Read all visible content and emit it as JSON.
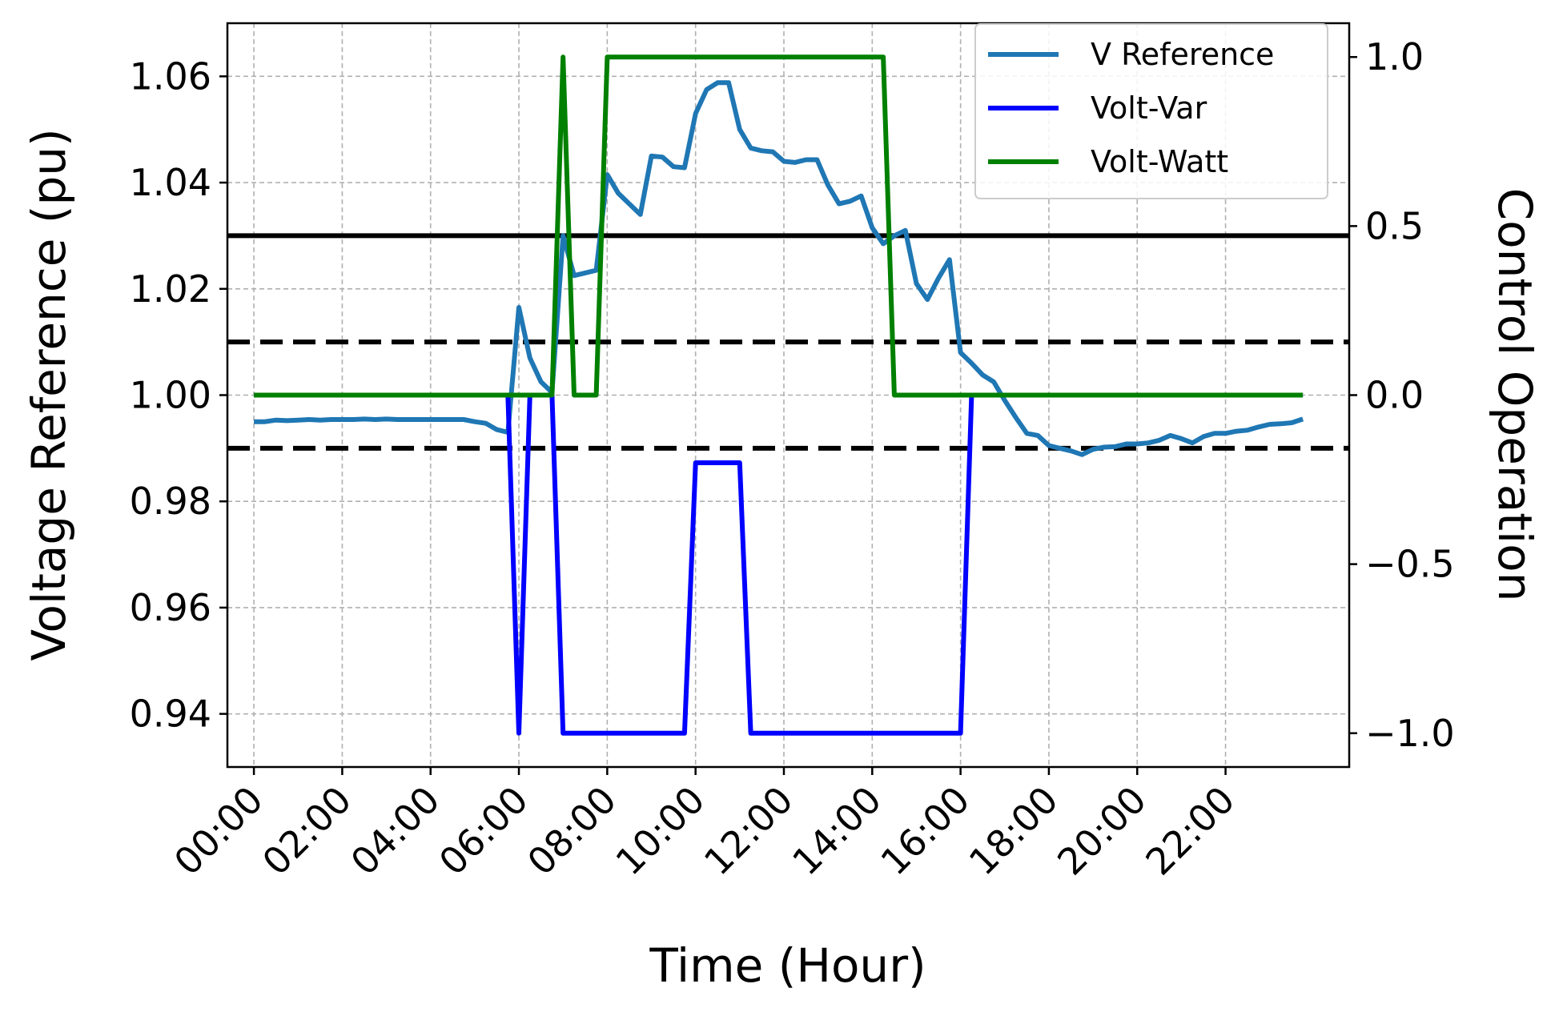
{
  "chart_data": {
    "type": "line",
    "xlabel": "Time (Hour)",
    "ylabel": "Voltage Reference (pu)",
    "y2label": "Control Operation",
    "xlim": [
      -0.6,
      24.8
    ],
    "ylim": [
      0.93,
      1.07
    ],
    "y2lim": [
      -1.1,
      1.1
    ],
    "x_ticks": [
      {
        "v": 0,
        "label": "00:00"
      },
      {
        "v": 2,
        "label": "02:00"
      },
      {
        "v": 4,
        "label": "04:00"
      },
      {
        "v": 6,
        "label": "06:00"
      },
      {
        "v": 8,
        "label": "08:00"
      },
      {
        "v": 10,
        "label": "10:00"
      },
      {
        "v": 12,
        "label": "12:00"
      },
      {
        "v": 14,
        "label": "14:00"
      },
      {
        "v": 16,
        "label": "16:00"
      },
      {
        "v": 18,
        "label": "18:00"
      },
      {
        "v": 20,
        "label": "20:00"
      },
      {
        "v": 22,
        "label": "22:00"
      }
    ],
    "y_ticks": [
      {
        "v": 0.94,
        "label": "0.94"
      },
      {
        "v": 0.96,
        "label": "0.96"
      },
      {
        "v": 0.98,
        "label": "0.98"
      },
      {
        "v": 1.0,
        "label": "1.00"
      },
      {
        "v": 1.02,
        "label": "1.02"
      },
      {
        "v": 1.04,
        "label": "1.04"
      },
      {
        "v": 1.06,
        "label": "1.06"
      }
    ],
    "y2_ticks": [
      {
        "v": -1.0,
        "label": "−1.0"
      },
      {
        "v": -0.5,
        "label": "−0.5"
      },
      {
        "v": 0.0,
        "label": "0.0"
      },
      {
        "v": 0.5,
        "label": "0.5"
      },
      {
        "v": 1.0,
        "label": "1.0"
      }
    ],
    "grid": true,
    "legend_position": "top-right",
    "reference_lines": [
      {
        "y": 1.03,
        "style": "solid",
        "color": "#000000"
      },
      {
        "y": 1.01,
        "style": "dashed",
        "color": "#000000"
      },
      {
        "y": 0.99,
        "style": "dashed",
        "color": "#000000"
      }
    ],
    "series": [
      {
        "name": "V Reference",
        "axis": "left",
        "color": "#1f77b4",
        "points": [
          [
            0.0,
            0.995
          ],
          [
            0.25,
            0.995
          ],
          [
            0.5,
            0.9953
          ],
          [
            0.75,
            0.9952
          ],
          [
            1.0,
            0.9953
          ],
          [
            1.25,
            0.9954
          ],
          [
            1.5,
            0.9953
          ],
          [
            1.75,
            0.9954
          ],
          [
            2.0,
            0.9954
          ],
          [
            2.25,
            0.9954
          ],
          [
            2.5,
            0.9955
          ],
          [
            2.75,
            0.9954
          ],
          [
            3.0,
            0.9955
          ],
          [
            3.25,
            0.9954
          ],
          [
            3.5,
            0.9954
          ],
          [
            3.75,
            0.9954
          ],
          [
            4.0,
            0.9954
          ],
          [
            4.25,
            0.9954
          ],
          [
            4.5,
            0.9954
          ],
          [
            4.75,
            0.9954
          ],
          [
            5.0,
            0.995
          ],
          [
            5.25,
            0.9947
          ],
          [
            5.5,
            0.9935
          ],
          [
            5.75,
            0.993
          ],
          [
            6.0,
            1.0165
          ],
          [
            6.25,
            1.007
          ],
          [
            6.5,
            1.0025
          ],
          [
            6.75,
            1.0005
          ],
          [
            7.0,
            1.03
          ],
          [
            7.25,
            1.0225
          ],
          [
            7.5,
            1.023
          ],
          [
            7.75,
            1.0235
          ],
          [
            8.0,
            1.0415
          ],
          [
            8.25,
            1.038
          ],
          [
            8.5,
            1.036
          ],
          [
            8.75,
            1.034
          ],
          [
            9.0,
            1.045
          ],
          [
            9.25,
            1.0448
          ],
          [
            9.5,
            1.043
          ],
          [
            9.75,
            1.0428
          ],
          [
            10.0,
            1.053
          ],
          [
            10.25,
            1.0575
          ],
          [
            10.5,
            1.0588
          ],
          [
            10.75,
            1.0588
          ],
          [
            11.0,
            1.05
          ],
          [
            11.25,
            1.0465
          ],
          [
            11.5,
            1.046
          ],
          [
            11.75,
            1.0458
          ],
          [
            12.0,
            1.044
          ],
          [
            12.25,
            1.0438
          ],
          [
            12.5,
            1.0443
          ],
          [
            12.75,
            1.0443
          ],
          [
            13.0,
            1.0395
          ],
          [
            13.25,
            1.036
          ],
          [
            13.5,
            1.0365
          ],
          [
            13.75,
            1.0375
          ],
          [
            14.0,
            1.0315
          ],
          [
            14.25,
            1.0285
          ],
          [
            14.5,
            1.03
          ],
          [
            14.75,
            1.031
          ],
          [
            15.0,
            1.021
          ],
          [
            15.25,
            1.018
          ],
          [
            15.5,
            1.022
          ],
          [
            15.75,
            1.0255
          ],
          [
            16.0,
            1.008
          ],
          [
            16.25,
            1.006
          ],
          [
            16.5,
            1.0038
          ],
          [
            16.75,
            1.0025
          ],
          [
            17.0,
            0.999
          ],
          [
            17.25,
            0.9958
          ],
          [
            17.5,
            0.9928
          ],
          [
            17.75,
            0.9924
          ],
          [
            18.0,
            0.9905
          ],
          [
            18.25,
            0.99
          ],
          [
            18.5,
            0.9895
          ],
          [
            18.75,
            0.9888
          ],
          [
            19.0,
            0.9898
          ],
          [
            19.25,
            0.9902
          ],
          [
            19.5,
            0.9903
          ],
          [
            19.75,
            0.9908
          ],
          [
            20.0,
            0.9908
          ],
          [
            20.25,
            0.991
          ],
          [
            20.5,
            0.9915
          ],
          [
            20.75,
            0.9924
          ],
          [
            21.0,
            0.9918
          ],
          [
            21.25,
            0.991
          ],
          [
            21.5,
            0.9922
          ],
          [
            21.75,
            0.9928
          ],
          [
            22.0,
            0.9928
          ],
          [
            22.25,
            0.9932
          ],
          [
            22.5,
            0.9934
          ],
          [
            22.75,
            0.994
          ],
          [
            23.0,
            0.9945
          ],
          [
            23.25,
            0.9946
          ],
          [
            23.5,
            0.9948
          ],
          [
            23.75,
            0.9955
          ]
        ]
      },
      {
        "name": "Volt-Var",
        "axis": "right",
        "color": "#0000ff",
        "points": [
          [
            0.0,
            0.0
          ],
          [
            5.75,
            0.0
          ],
          [
            6.0,
            -1.0
          ],
          [
            6.25,
            0.0
          ],
          [
            6.75,
            0.0
          ],
          [
            7.0,
            -1.0
          ],
          [
            9.75,
            -1.0
          ],
          [
            10.0,
            -0.2
          ],
          [
            11.0,
            -0.2
          ],
          [
            11.25,
            -1.0
          ],
          [
            16.0,
            -1.0
          ],
          [
            16.25,
            0.0
          ],
          [
            23.75,
            0.0
          ]
        ]
      },
      {
        "name": "Volt-Watt",
        "axis": "right",
        "color": "#008000",
        "points": [
          [
            0.0,
            0.0
          ],
          [
            6.75,
            0.0
          ],
          [
            7.0,
            1.0
          ],
          [
            7.25,
            0.0
          ],
          [
            7.75,
            0.0
          ],
          [
            8.0,
            1.0
          ],
          [
            14.25,
            1.0
          ],
          [
            14.5,
            0.0
          ],
          [
            23.75,
            0.0
          ]
        ]
      }
    ]
  }
}
